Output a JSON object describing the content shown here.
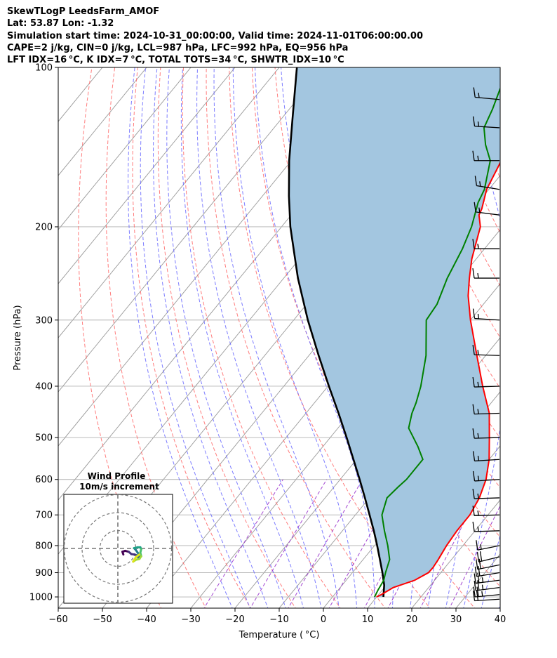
{
  "header": {
    "line1": "SkewTLogP LeedsFarm_AMOF",
    "line2": "Lat: 53.87   Lon: -1.32",
    "line3": "Simulation start time: 2024-10-31_00:00:00, Valid time: 2024-11-01T06:00:00.00",
    "line4": "CAPE=2 j/kg, CIN=0 j/kg, LCL=987 hPa, LFC=992 hPa, EQ=956 hPa",
    "line5": "LFT IDX=16 °C, K IDX=7 °C, TOTAL TOTS=34 °C, SHWTR_IDX=10 °C"
  },
  "chart_data": {
    "type": "skew-t log-p",
    "xlabel": "Temperature ( °C)",
    "ylabel": "Pressure (hPa)",
    "xlim": [
      -60,
      40
    ],
    "ylim_hpa": [
      1050,
      100
    ],
    "x_ticks": [
      -60,
      -50,
      -40,
      -30,
      -20,
      -10,
      0,
      10,
      20,
      30,
      40
    ],
    "x_tick_labels": [
      "−60",
      "−50",
      "−40",
      "−30",
      "−20",
      "−10",
      "0",
      "10",
      "20",
      "30",
      "40"
    ],
    "y_ticks": [
      1000,
      900,
      800,
      700,
      600,
      500,
      400,
      300,
      200,
      100
    ],
    "grid": true,
    "colors": {
      "temperature": "#ff0000",
      "dewpoint": "#008000",
      "parcel": "#000000",
      "cape_fill": "#a3c6e0",
      "dry_adiabats": "#ff6666",
      "moist_adiabats": "#6666ff",
      "mixing_ratio": "#9933cc",
      "isotherms": "#999999"
    },
    "temperature_profile": [
      [
        1000,
        10.0
      ],
      [
        990,
        10.6
      ],
      [
        960,
        12.0
      ],
      [
        930,
        15.5
      ],
      [
        900,
        17.2
      ],
      [
        880,
        17.3
      ],
      [
        850,
        17.0
      ],
      [
        800,
        16.3
      ],
      [
        750,
        15.9
      ],
      [
        700,
        15.9
      ],
      [
        650,
        14.9
      ],
      [
        600,
        13.0
      ],
      [
        550,
        10.0
      ],
      [
        500,
        6.0
      ],
      [
        450,
        1.5
      ],
      [
        400,
        -5.0
      ],
      [
        350,
        -12.0
      ],
      [
        300,
        -20.0
      ],
      [
        270,
        -25.0
      ],
      [
        250,
        -28.0
      ],
      [
        230,
        -31.0
      ],
      [
        200,
        -35.0
      ],
      [
        190,
        -37.5
      ],
      [
        185,
        -38.0
      ],
      [
        170,
        -40.5
      ],
      [
        150,
        -42.5
      ],
      [
        140,
        -45.0
      ],
      [
        130,
        -48.0
      ],
      [
        120,
        -51.5
      ],
      [
        110,
        -53.0
      ],
      [
        100,
        -55.0
      ]
    ],
    "dewpoint_profile": [
      [
        1000,
        9.5
      ],
      [
        970,
        9.0
      ],
      [
        930,
        8.5
      ],
      [
        900,
        7.5
      ],
      [
        850,
        6.0
      ],
      [
        800,
        3.0
      ],
      [
        750,
        -0.5
      ],
      [
        700,
        -4.0
      ],
      [
        650,
        -6.0
      ],
      [
        620,
        -5.5
      ],
      [
        600,
        -5.0
      ],
      [
        550,
        -5.0
      ],
      [
        520,
        -8.5
      ],
      [
        480,
        -14.0
      ],
      [
        450,
        -16.0
      ],
      [
        430,
        -17.0
      ],
      [
        400,
        -19.0
      ],
      [
        350,
        -23.5
      ],
      [
        300,
        -30.0
      ],
      [
        280,
        -30.5
      ],
      [
        250,
        -33.0
      ],
      [
        220,
        -35.0
      ],
      [
        200,
        -37.0
      ],
      [
        180,
        -40.0
      ],
      [
        170,
        -41.0
      ],
      [
        150,
        -45.0
      ],
      [
        140,
        -49.0
      ],
      [
        130,
        -52.5
      ],
      [
        120,
        -54.0
      ],
      [
        110,
        -56.0
      ],
      [
        100,
        -58.0
      ]
    ],
    "parcel_profile": [
      [
        1000,
        11.5
      ],
      [
        950,
        9.5
      ],
      [
        900,
        6.8
      ],
      [
        850,
        3.8
      ],
      [
        800,
        0.6
      ],
      [
        750,
        -2.9
      ],
      [
        700,
        -6.8
      ],
      [
        650,
        -11.0
      ],
      [
        600,
        -15.6
      ],
      [
        550,
        -20.7
      ],
      [
        500,
        -26.3
      ],
      [
        450,
        -32.6
      ],
      [
        400,
        -39.8
      ],
      [
        350,
        -47.8
      ],
      [
        300,
        -56.8
      ],
      [
        250,
        -66.8
      ],
      [
        200,
        -78.0
      ],
      [
        175,
        -84.0
      ],
      [
        150,
        -90.5
      ],
      [
        125,
        -97.5
      ],
      [
        100,
        -106.0
      ]
    ],
    "wind_barbs": [
      {
        "p": 1010,
        "speed_kt": 20,
        "dir_deg": 100
      },
      {
        "p": 990,
        "speed_kt": 25,
        "dir_deg": 105
      },
      {
        "p": 960,
        "speed_kt": 25,
        "dir_deg": 110
      },
      {
        "p": 930,
        "speed_kt": 25,
        "dir_deg": 110
      },
      {
        "p": 900,
        "speed_kt": 20,
        "dir_deg": 115
      },
      {
        "p": 870,
        "speed_kt": 20,
        "dir_deg": 120
      },
      {
        "p": 840,
        "speed_kt": 20,
        "dir_deg": 125
      },
      {
        "p": 800,
        "speed_kt": 15,
        "dir_deg": 120
      },
      {
        "p": 750,
        "speed_kt": 15,
        "dir_deg": 95
      },
      {
        "p": 700,
        "speed_kt": 15,
        "dir_deg": 95
      },
      {
        "p": 650,
        "speed_kt": 15,
        "dir_deg": 95
      },
      {
        "p": 600,
        "speed_kt": 15,
        "dir_deg": 100
      },
      {
        "p": 550,
        "speed_kt": 15,
        "dir_deg": 100
      },
      {
        "p": 500,
        "speed_kt": 15,
        "dir_deg": 95
      },
      {
        "p": 450,
        "speed_kt": 15,
        "dir_deg": 95
      },
      {
        "p": 400,
        "speed_kt": 15,
        "dir_deg": 95
      },
      {
        "p": 350,
        "speed_kt": 15,
        "dir_deg": 85
      },
      {
        "p": 300,
        "speed_kt": 15,
        "dir_deg": 80
      },
      {
        "p": 250,
        "speed_kt": 15,
        "dir_deg": 90
      },
      {
        "p": 220,
        "speed_kt": 15,
        "dir_deg": 90
      },
      {
        "p": 190,
        "speed_kt": 15,
        "dir_deg": 70
      },
      {
        "p": 170,
        "speed_kt": 15,
        "dir_deg": 65
      },
      {
        "p": 150,
        "speed_kt": 15,
        "dir_deg": 90
      },
      {
        "p": 130,
        "speed_kt": 15,
        "dir_deg": 80
      },
      {
        "p": 115,
        "speed_kt": 15,
        "dir_deg": 75
      }
    ],
    "hodograph": {
      "title": "Wind Profile",
      "subtitle": "10m/s increment",
      "ring_increment_ms": 10,
      "rings": 3,
      "trace_uv": [
        [
          -4,
          -1
        ],
        [
          -4.5,
          0.5
        ],
        [
          -3,
          1.0
        ],
        [
          -1.0,
          0.5
        ],
        [
          0.5,
          -0.8
        ],
        [
          2.0,
          -1.0
        ],
        [
          3.5,
          -1.5
        ],
        [
          4.5,
          -3.0
        ],
        [
          5.0,
          -1.5
        ],
        [
          4.0,
          0.0
        ],
        [
          3.0,
          1.5
        ],
        [
          2.0,
          2.5
        ],
        [
          4.0,
          3.0
        ],
        [
          5.5,
          3.0
        ],
        [
          6.0,
          2.0
        ],
        [
          5.5,
          0.0
        ],
        [
          6.0,
          -2.0
        ],
        [
          5.0,
          -3.5
        ],
        [
          3.0,
          -4.0
        ],
        [
          1.5,
          -5.0
        ],
        [
          3.0,
          -2.5
        ],
        [
          5.0,
          -1.0
        ]
      ]
    }
  }
}
